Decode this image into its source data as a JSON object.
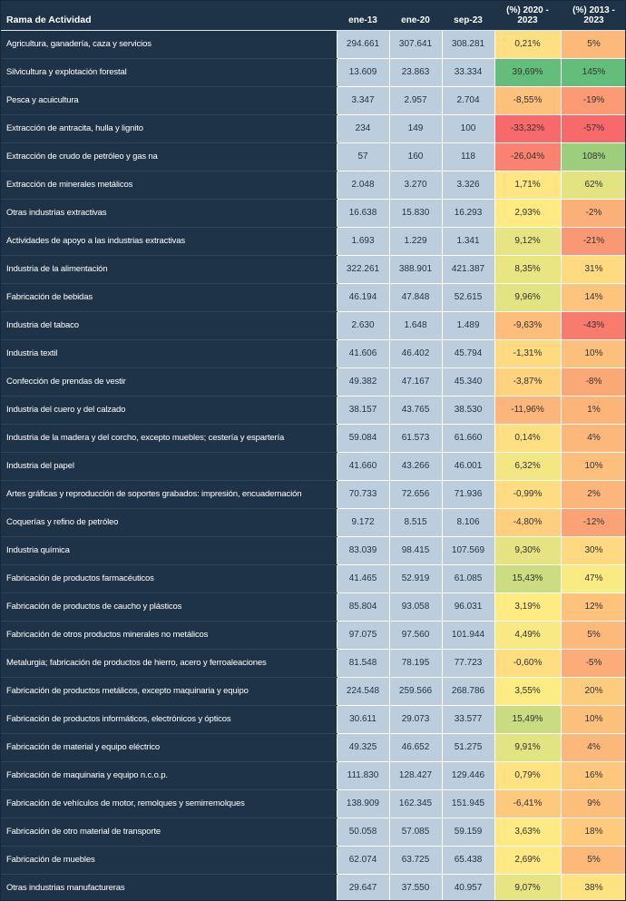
{
  "chart_data": {
    "type": "table",
    "columns": [
      "Rama de Actividad",
      "ene-13",
      "ene-20",
      "sep-23",
      "(%) 2020 - 2023",
      "(%) 2013 - 2023"
    ],
    "rows": [
      [
        "Agricultura, ganadería, caza y servicios",
        "294.661",
        "307.641",
        "308.281",
        "0,21%",
        "5%"
      ],
      [
        "Silvicultura y explotación forestal",
        "13.609",
        "23.863",
        "33.334",
        "39,69%",
        "145%"
      ],
      [
        "Pesca y acuicultura",
        "3.347",
        "2.957",
        "2.704",
        "-8,55%",
        "-19%"
      ],
      [
        "Extracción de antracita, hulla y lignito",
        "234",
        "149",
        "100",
        "-33,32%",
        "-57%"
      ],
      [
        "Extracción de crudo de petróleo y gas na",
        "57",
        "160",
        "118",
        "-26,04%",
        "108%"
      ],
      [
        "Extracción de minerales metálicos",
        "2.048",
        "3.270",
        "3.326",
        "1,71%",
        "62%"
      ],
      [
        "Otras industrias extractivas",
        "16.638",
        "15.830",
        "16.293",
        "2,93%",
        "-2%"
      ],
      [
        "Actividades de apoyo a las industrias extractivas",
        "1.693",
        "1.229",
        "1.341",
        "9,12%",
        "-21%"
      ],
      [
        "Industria de la alimentación",
        "322.261",
        "388.901",
        "421.387",
        "8,35%",
        "31%"
      ],
      [
        "Fabricación de bebidas",
        "46.194",
        "47.848",
        "52.615",
        "9,96%",
        "14%"
      ],
      [
        "Industria del tabaco",
        "2.630",
        "1.648",
        "1.489",
        "-9,63%",
        "-43%"
      ],
      [
        "Industria textil",
        "41.606",
        "46.402",
        "45.794",
        "-1,31%",
        "10%"
      ],
      [
        "Confección de prendas de vestir",
        "49.382",
        "47.167",
        "45.340",
        "-3,87%",
        "-8%"
      ],
      [
        "Industria del cuero y del calzado",
        "38.157",
        "43.765",
        "38.530",
        "-11,96%",
        "1%"
      ],
      [
        "Industria de la madera y del corcho, excepto muebles; cestería y espartería",
        "59.084",
        "61.573",
        "61.660",
        "0,14%",
        "4%"
      ],
      [
        "Industria del papel",
        "41.660",
        "43.266",
        "46.001",
        "6,32%",
        "10%"
      ],
      [
        "Artes gráficas y reproducción de soportes grabados: impresión, encuadernación",
        "70.733",
        "72.656",
        "71.936",
        "-0,99%",
        "2%"
      ],
      [
        "Coquerías y refino de petróleo",
        "9.172",
        "8.515",
        "8.106",
        "-4,80%",
        "-12%"
      ],
      [
        "Industria química",
        "83.039",
        "98.415",
        "107.569",
        "9,30%",
        "30%"
      ],
      [
        "Fabricación de productos farmacéuticos",
        "41.465",
        "52.919",
        "61.085",
        "15,43%",
        "47%"
      ],
      [
        "Fabricación de productos de caucho y plásticos",
        "85.804",
        "93.058",
        "96.031",
        "3,19%",
        "12%"
      ],
      [
        "Fabricación de otros productos minerales no metálicos",
        "97.075",
        "97.560",
        "101.944",
        "4,49%",
        "5%"
      ],
      [
        "Metalurgia; fabricación de productos de hierro, acero y ferroaleaciones",
        "81.548",
        "78.195",
        "77.723",
        "-0,60%",
        "-5%"
      ],
      [
        "Fabricación de productos metálicos, excepto maquinaria y equipo",
        "224.548",
        "259.566",
        "268.786",
        "3,55%",
        "20%"
      ],
      [
        "Fabricación de productos informáticos, electrónicos y ópticos",
        "30.611",
        "29.073",
        "33.577",
        "15,49%",
        "10%"
      ],
      [
        "Fabricación de material y equipo eléctrico",
        "49.325",
        "46.652",
        "51.275",
        "9,91%",
        "4%"
      ],
      [
        "Fabricación de maquinaria y equipo n.c.o.p.",
        "111.830",
        "128.427",
        "129.446",
        "0,79%",
        "16%"
      ],
      [
        "Fabricación de vehículos de motor, remolques y semirremolques",
        "138.909",
        "162.345",
        "151.945",
        "-6,41%",
        "9%"
      ],
      [
        "Fabricación de otro material de transporte",
        "50.058",
        "57.085",
        "59.159",
        "3,63%",
        "18%"
      ],
      [
        "Fabricación de muebles",
        "62.074",
        "63.725",
        "65.438",
        "2,69%",
        "5%"
      ],
      [
        "Otras industrias manufactureras",
        "29.647",
        "37.550",
        "40.957",
        "9,07%",
        "38%"
      ]
    ]
  },
  "colors": {
    "header_bg": "#1F3348",
    "label_bg": "#1F3348",
    "label_text": "#FFFFFF",
    "value_bg": "#BCCEDE",
    "value_text": "#1E3246",
    "pct_text": "#333333",
    "scale": {
      "min_color": "#F8696B",
      "mid_color": "#FFEB84",
      "max_color": "#63BE7B",
      "ranges": [
        {
          "column": "(%) 2020 - 2023",
          "min": -33.32,
          "max": 39.69
        },
        {
          "column": "(%) 2013 - 2023",
          "min": -57,
          "max": 145
        }
      ]
    }
  }
}
